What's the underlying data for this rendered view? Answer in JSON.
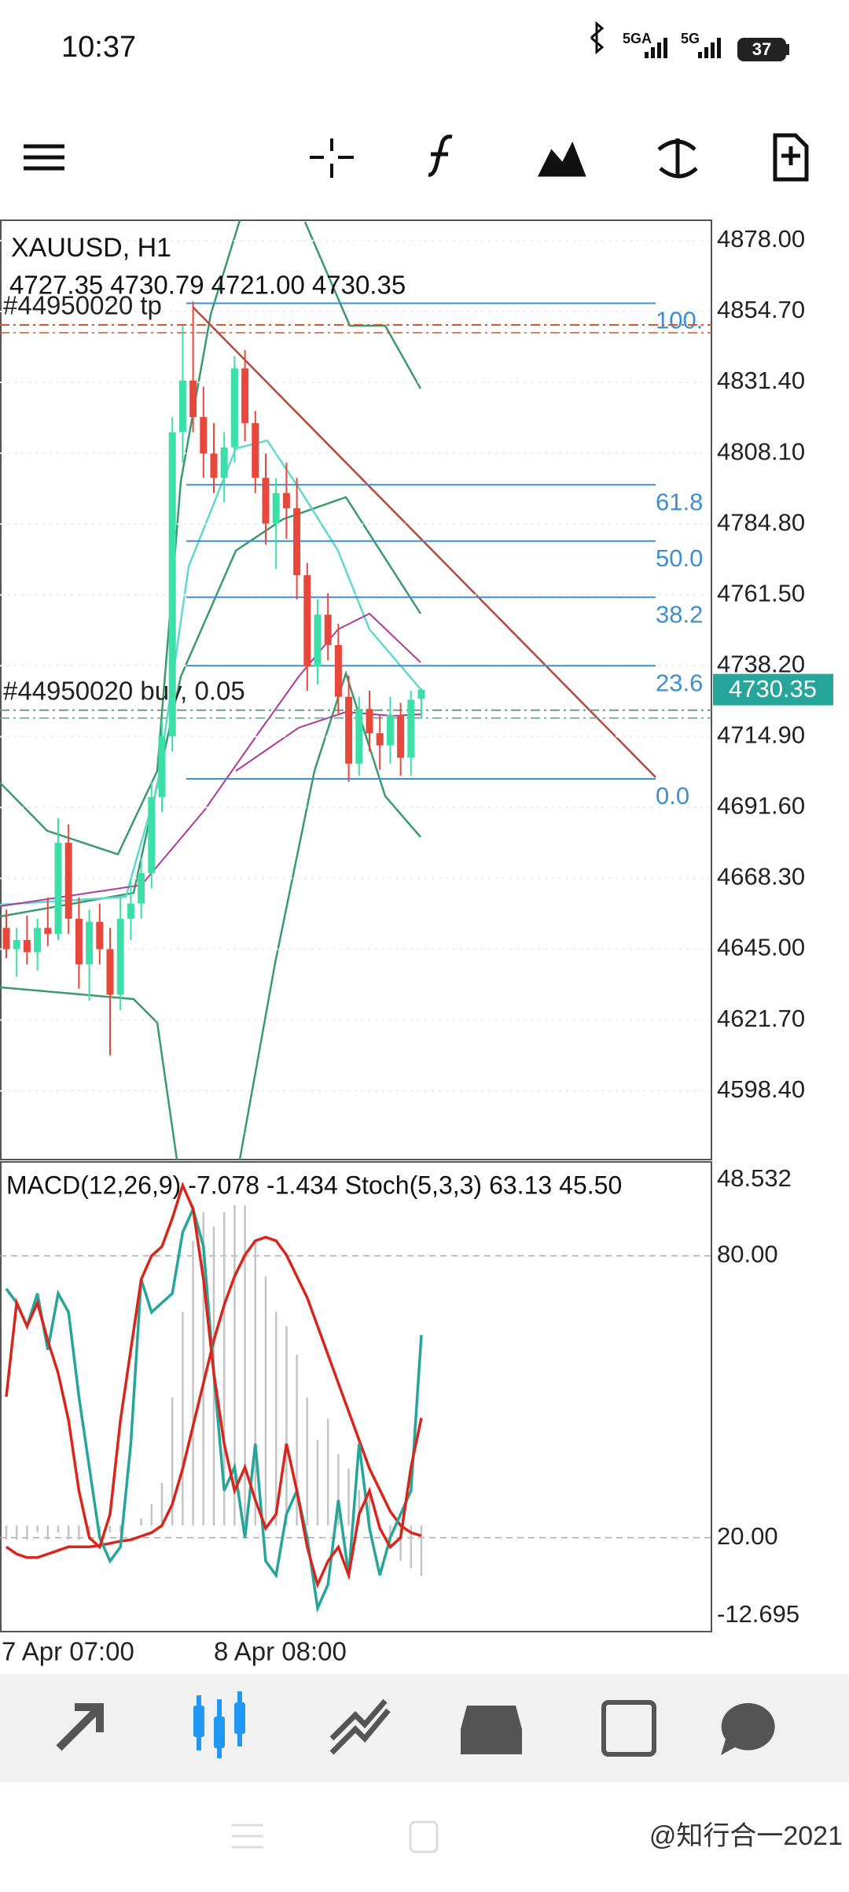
{
  "status_bar": {
    "time": "10:37",
    "network_1": "5GA",
    "network_2": "5G",
    "battery": "37"
  },
  "chart_data": [
    {
      "type": "candlestick",
      "title": "XAUUSD, H1",
      "ohlc_text": [
        "4727.35",
        "4730.79",
        "4721.00",
        "4730.35"
      ],
      "categories": [
        "7 Apr 07:00",
        null,
        null,
        null,
        null,
        null,
        null,
        null,
        null,
        null,
        null,
        null,
        null,
        null,
        null,
        null,
        null,
        null,
        null,
        null,
        "8 Apr 08:00",
        null,
        null,
        null,
        null,
        null,
        null,
        null,
        null,
        null,
        null,
        null,
        null,
        null,
        null,
        null,
        null,
        null,
        null,
        null,
        null
      ],
      "open": [
        4652,
        4645,
        4648,
        4644,
        4652,
        4650,
        4680,
        4655,
        4640,
        4654,
        4645,
        4630,
        4655,
        4660,
        4670,
        4695,
        4715,
        4815,
        4832,
        4820,
        4808,
        4800,
        4810,
        4836,
        4818,
        4800,
        4785,
        4795,
        4790,
        4768,
        4738,
        4755,
        4745,
        4728,
        4706,
        4724,
        4716,
        4712,
        4722,
        4708,
        4727.35
      ],
      "high": [
        4658,
        4652,
        4656,
        4655,
        4662,
        4688,
        4686,
        4662,
        4658,
        4660,
        4652,
        4662,
        4668,
        4675,
        4700,
        4720,
        4820,
        4850,
        4858,
        4830,
        4818,
        4815,
        4840,
        4842,
        4822,
        4808,
        4800,
        4805,
        4800,
        4772,
        4760,
        4762,
        4752,
        4735,
        4728,
        4730,
        4722,
        4728,
        4726,
        4730,
        4730.79
      ],
      "low": [
        4642,
        4636,
        4640,
        4638,
        4646,
        4648,
        4650,
        4632,
        4628,
        4640,
        4610,
        4625,
        4648,
        4655,
        4665,
        4690,
        4710,
        4805,
        4815,
        4800,
        4795,
        4792,
        4805,
        4812,
        4795,
        4778,
        4770,
        4780,
        4760,
        4730,
        4732,
        4740,
        4722,
        4700,
        4702,
        4710,
        4704,
        4706,
        4702,
        4702,
        4721
      ],
      "close": [
        4645,
        4648,
        4644,
        4652,
        4650,
        4680,
        4655,
        4640,
        4654,
        4645,
        4630,
        4655,
        4660,
        4670,
        4695,
        4715,
        4815,
        4832,
        4820,
        4808,
        4800,
        4810,
        4836,
        4818,
        4800,
        4785,
        4795,
        4790,
        4768,
        4738,
        4755,
        4745,
        4728,
        4706,
        4724,
        4716,
        4712,
        4722,
        4708,
        4727,
        4730.35
      ],
      "colors": {
        "up": "#3ddfa8",
        "down": "#e8483c"
      },
      "ylim": [
        4575.8,
        4884.7
      ],
      "yticks": [
        {
          "value": 4878,
          "label": "4878.00"
        },
        {
          "value": 4854.7,
          "label": "4854.70"
        },
        {
          "value": 4831.4,
          "label": "4831.40"
        },
        {
          "value": 4808.1,
          "label": "4808.10"
        },
        {
          "value": 4784.8,
          "label": "4784.80"
        },
        {
          "value": 4761.5,
          "label": "4761.50"
        },
        {
          "value": 4738.2,
          "label": "4738.20"
        },
        {
          "value": 4714.9,
          "label": "4714.90"
        },
        {
          "value": 4691.6,
          "label": "4691.60"
        },
        {
          "value": 4668.3,
          "label": "4668.30"
        },
        {
          "value": 4645,
          "label": "4645.00"
        },
        {
          "value": 4621.7,
          "label": "4621.70"
        },
        {
          "value": 4598.4,
          "label": "4598.40"
        }
      ],
      "grid": true,
      "current_price": {
        "value": 4730.35,
        "label": "4730.35",
        "color": "#26a69a"
      },
      "orders": [
        {
          "name": "#44950020 tp",
          "value": 4850.3,
          "color": "#d9532c"
        },
        {
          "name": "#44950020 buy, 0.05",
          "value": 4723.6,
          "color": "#6a9a8a"
        }
      ],
      "fibonacci": {
        "color": "#3f8fd0",
        "levels": [
          {
            "value": 4857.4,
            "label": "100."
          },
          {
            "value": 4797.7,
            "label": "61.8"
          },
          {
            "value": 4779.2,
            "label": "50.0"
          },
          {
            "value": 4760.7,
            "label": "38.2"
          },
          {
            "value": 4738.2,
            "label": "23.6"
          },
          {
            "value": 4701,
            "label": "0.0"
          }
        ]
      }
    },
    {
      "type": "indicator",
      "title_parts": [
        "MACD(12,26,9)",
        "-7.078",
        "-1.434",
        "Stoch(5,3,3)",
        "63.13",
        "45.50"
      ],
      "ylim": [
        -14.9,
        51.07
      ],
      "yticks": [
        48.532,
        -12.695
      ],
      "y2lim": [
        0,
        100
      ],
      "y2ticks": [
        {
          "value": 80,
          "label": "80.00"
        },
        {
          "value": 20,
          "label": "20.00"
        }
      ],
      "series": [
        {
          "kind": "histogram",
          "color": "#c4c4c4",
          "values": [
            -2,
            -2,
            -2,
            -1,
            -2,
            -1,
            -2,
            -2,
            -2,
            -1,
            -1,
            -1,
            0,
            1,
            3,
            6,
            18,
            30,
            40,
            44,
            42,
            44,
            45,
            45,
            40,
            35,
            30,
            28,
            24,
            18,
            12,
            15,
            10,
            8,
            5,
            4,
            0,
            -3,
            -5,
            -6,
            -7.078
          ]
        },
        {
          "kind": "line",
          "color": "#d9261c",
          "values": [
            -3,
            -4,
            -4.5,
            -4.5,
            -4,
            -3.5,
            -3,
            -3,
            -3,
            -2.8,
            -2.5,
            -2.2,
            -2,
            -1.5,
            -1,
            0,
            3,
            8,
            14,
            20,
            26,
            31,
            35,
            38,
            40,
            40.5,
            40,
            38,
            35,
            32,
            28,
            24,
            20,
            16,
            12,
            8,
            5,
            2,
            0,
            -1,
            -1.434
          ]
        },
        {
          "kind": "line",
          "axis": "y2",
          "color": "#26a69a",
          "values": [
            73,
            70,
            65,
            72,
            60,
            72,
            68,
            50,
            35,
            20,
            15,
            18,
            40,
            75,
            68,
            70,
            72,
            85,
            90,
            82,
            55,
            30,
            35,
            20,
            40,
            15,
            12,
            25,
            30,
            20,
            5,
            10,
            28,
            12,
            40,
            22,
            12,
            20,
            25,
            30,
            63.13
          ]
        },
        {
          "kind": "line",
          "axis": "y2",
          "color": "#d9261c",
          "values": [
            50,
            70,
            65,
            70,
            62,
            55,
            45,
            30,
            20,
            18,
            25,
            45,
            60,
            75,
            80,
            82,
            88,
            95,
            90,
            75,
            55,
            40,
            30,
            35,
            28,
            22,
            25,
            40,
            30,
            18,
            10,
            15,
            18,
            12,
            25,
            30,
            22,
            18,
            20,
            35,
            45.5
          ]
        }
      ]
    }
  ],
  "watermark": "@知行合一2021"
}
